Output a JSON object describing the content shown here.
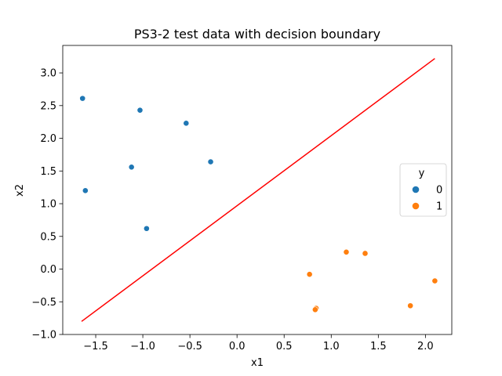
{
  "chart_data": {
    "type": "scatter",
    "title": "PS3-2 test data with decision boundary",
    "xlabel": "x1",
    "ylabel": "x2",
    "xlim": [
      -1.85,
      2.28
    ],
    "ylim": [
      -1.0,
      3.42
    ],
    "xticks": [
      -1.5,
      -1.0,
      -0.5,
      0.0,
      0.5,
      1.0,
      1.5,
      2.0
    ],
    "xtick_labels": [
      "−1.5",
      "−1.0",
      "−0.5",
      "0.0",
      "0.5",
      "1.0",
      "1.5",
      "2.0"
    ],
    "yticks": [
      -1.0,
      -0.5,
      0.0,
      0.5,
      1.0,
      1.5,
      2.0,
      2.5,
      3.0
    ],
    "ytick_labels": [
      "−1.0",
      "−0.5",
      "0.0",
      "0.5",
      "1.0",
      "1.5",
      "2.0",
      "2.5",
      "3.0"
    ],
    "grid": false,
    "series": [
      {
        "name": "0",
        "color": "#1f77b4",
        "points": [
          {
            "x": -1.64,
            "y": 2.61
          },
          {
            "x": -1.03,
            "y": 2.43
          },
          {
            "x": -0.54,
            "y": 2.23
          },
          {
            "x": -0.28,
            "y": 1.64
          },
          {
            "x": -1.12,
            "y": 1.56
          },
          {
            "x": -1.61,
            "y": 1.2
          },
          {
            "x": -0.96,
            "y": 0.62
          }
        ]
      },
      {
        "name": "1",
        "color": "#ff7f0e",
        "points": [
          {
            "x": 1.16,
            "y": 0.26
          },
          {
            "x": 1.36,
            "y": 0.24
          },
          {
            "x": 0.77,
            "y": -0.08
          },
          {
            "x": 2.1,
            "y": -0.18
          },
          {
            "x": 1.84,
            "y": -0.56
          },
          {
            "x": 0.84,
            "y": -0.6
          },
          {
            "x": 0.83,
            "y": -0.62
          }
        ]
      }
    ],
    "boundary": {
      "color": "#ff0000",
      "points": [
        {
          "x": -1.65,
          "y": -0.8
        },
        {
          "x": 2.1,
          "y": 3.22
        }
      ]
    },
    "legend": {
      "title": "y",
      "location": "center-right",
      "entries": [
        "0",
        "1"
      ]
    }
  }
}
